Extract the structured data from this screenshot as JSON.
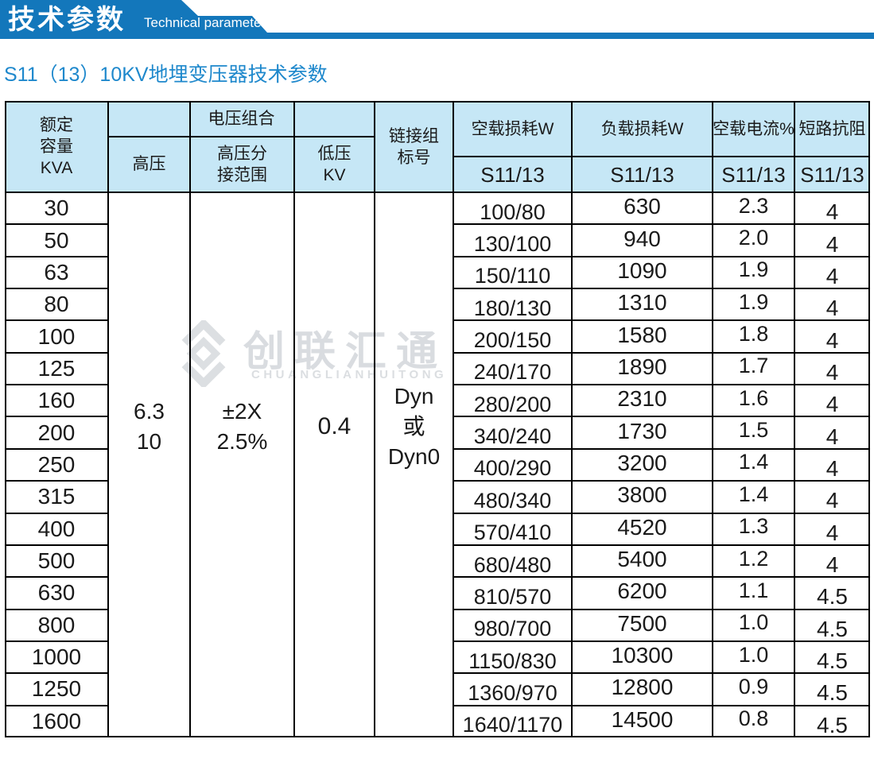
{
  "banner": {
    "title_cn": "技术参数",
    "title_en": "Technical parameter"
  },
  "page_title": "S11（13）10KV地埋变压器技术参数",
  "watermark": {
    "logo_icon": "interlocked-diamond-logo",
    "text_cn": "创联汇通",
    "text_en": "CHUANGLIANHUITONG"
  },
  "colors": {
    "ribbon_blue": "#1377bb",
    "title_blue": "#1e88cc",
    "header_bg": "#c6e7f6",
    "border": "#000000",
    "watermark_gray": "#d9dce0"
  },
  "table": {
    "header": {
      "rated_capacity": "额定\n容量\nKVA",
      "voltage_group": "电压组合",
      "high_voltage": "高压",
      "hv_tap_range": "高压分\n接范围",
      "low_voltage": "低压\nKV",
      "connection_group": "链接组\n标号",
      "no_load_loss": "空载损耗W",
      "load_loss": "负载损耗W",
      "no_load_current": "空载电流%",
      "short_circuit_impedance": "短路抗阻",
      "model": "S11/13"
    },
    "merged": {
      "hv_value": "6.3\n10",
      "tap_value": "±2X\n2.5%",
      "lv_value": "0.4",
      "connection_value": "Dyn\n或\nDyn0"
    },
    "rows": [
      {
        "kva": "30",
        "no_load": "100/80",
        "load": "630",
        "current": "2.3",
        "impedance": "4"
      },
      {
        "kva": "50",
        "no_load": "130/100",
        "load": "940",
        "current": "2.0",
        "impedance": "4"
      },
      {
        "kva": "63",
        "no_load": "150/110",
        "load": "1090",
        "current": "1.9",
        "impedance": "4"
      },
      {
        "kva": "80",
        "no_load": "180/130",
        "load": "1310",
        "current": "1.9",
        "impedance": "4"
      },
      {
        "kva": "100",
        "no_load": "200/150",
        "load": "1580",
        "current": "1.8",
        "impedance": "4"
      },
      {
        "kva": "125",
        "no_load": "240/170",
        "load": "1890",
        "current": "1.7",
        "impedance": "4"
      },
      {
        "kva": "160",
        "no_load": "280/200",
        "load": "2310",
        "current": "1.6",
        "impedance": "4"
      },
      {
        "kva": "200",
        "no_load": "340/240",
        "load": "1730",
        "current": "1.5",
        "impedance": "4"
      },
      {
        "kva": "250",
        "no_load": "400/290",
        "load": "3200",
        "current": "1.4",
        "impedance": "4"
      },
      {
        "kva": "315",
        "no_load": "480/340",
        "load": "3800",
        "current": "1.4",
        "impedance": "4"
      },
      {
        "kva": "400",
        "no_load": "570/410",
        "load": "4520",
        "current": "1.3",
        "impedance": "4"
      },
      {
        "kva": "500",
        "no_load": "680/480",
        "load": "5400",
        "current": "1.2",
        "impedance": "4"
      },
      {
        "kva": "630",
        "no_load": "810/570",
        "load": "6200",
        "current": "1.1",
        "impedance": "4.5"
      },
      {
        "kva": "800",
        "no_load": "980/700",
        "load": "7500",
        "current": "1.0",
        "impedance": "4.5"
      },
      {
        "kva": "1000",
        "no_load": "1150/830",
        "load": "10300",
        "current": "1.0",
        "impedance": "4.5"
      },
      {
        "kva": "1250",
        "no_load": "1360/970",
        "load": "12800",
        "current": "0.9",
        "impedance": "4.5"
      },
      {
        "kva": "1600",
        "no_load": "1640/1170",
        "load": "14500",
        "current": "0.8",
        "impedance": "4.5"
      }
    ]
  }
}
